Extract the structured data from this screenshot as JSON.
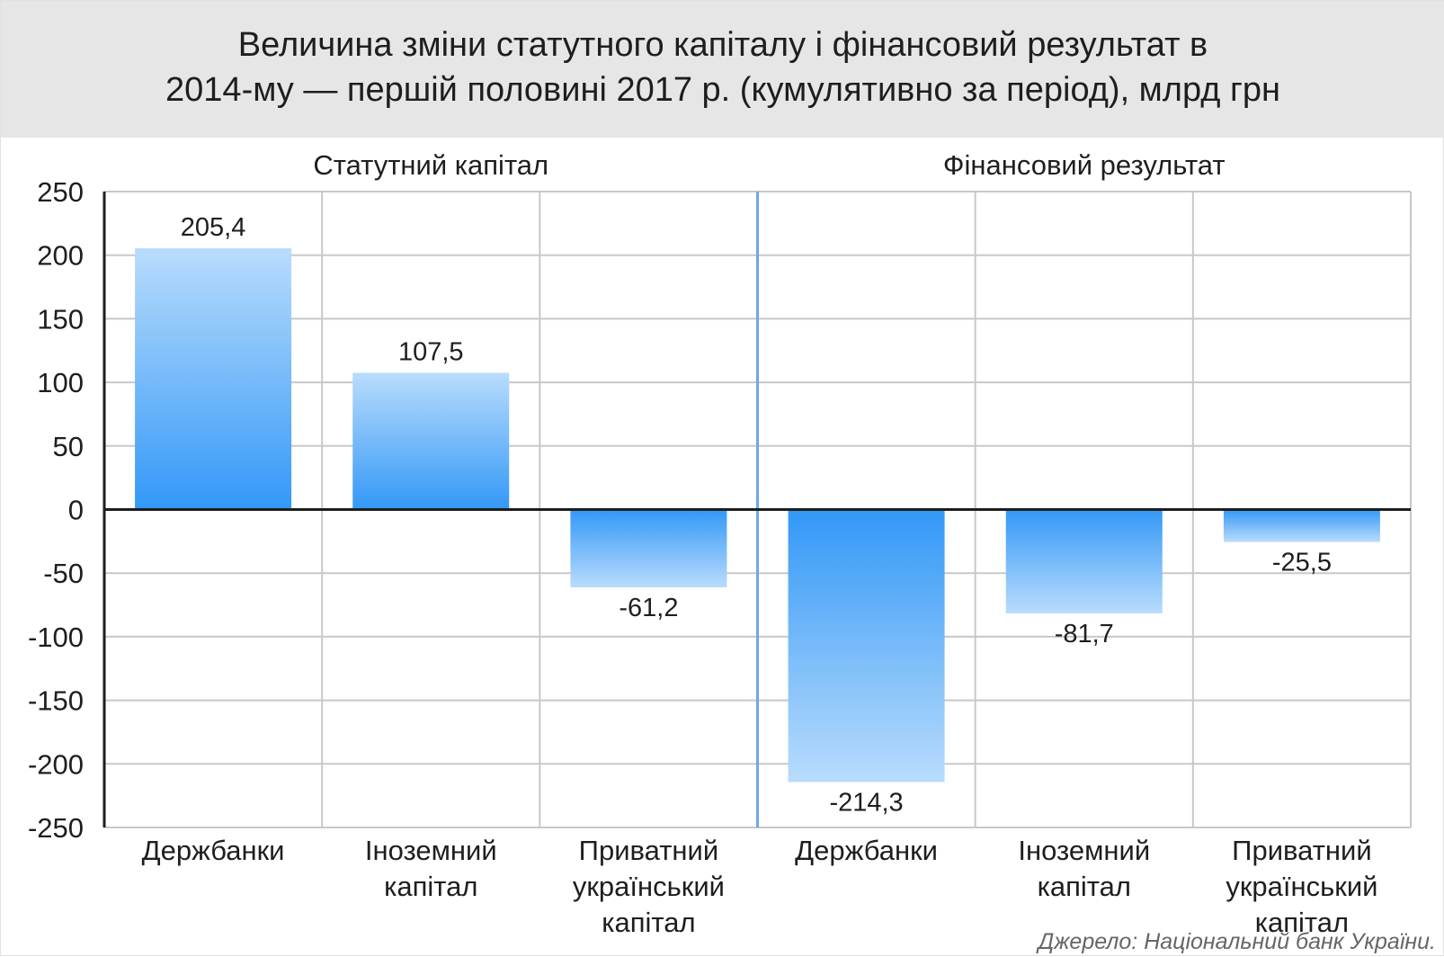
{
  "title": "Величина зміни статутного капіталу і фінансовий результат в\n2014-му — першій половині 2017 р. (кумулятивно за період), млрд грн",
  "source": "Джерело: Національний банк України.",
  "colors": {
    "bar_dark": "#3398f7",
    "bar_light": "#b9dcfc",
    "divider": "#6fa8e6",
    "grid": "#c8c8c8",
    "title_bg": "#e6e6e6"
  },
  "chart_data": {
    "type": "bar",
    "panels": [
      {
        "label": "Статутний капітал",
        "categories": [
          "Держбанки",
          "Іноземний\nкапітал",
          "Приватний\nукраїнський\nкапітал"
        ],
        "values": [
          205.4,
          107.5,
          -61.2
        ],
        "value_labels": [
          "205,4",
          "107,5",
          "-61,2"
        ]
      },
      {
        "label": "Фінансовий результат",
        "categories": [
          "Держбанки",
          "Іноземний\nкапітал",
          "Приватний\nукраїнський\nкапітал"
        ],
        "values": [
          -214.3,
          -81.7,
          -25.5
        ],
        "value_labels": [
          "-214,3",
          "-81,7",
          "-25,5"
        ]
      }
    ],
    "ylim": [
      -250,
      250
    ],
    "yticks": [
      250,
      200,
      150,
      100,
      50,
      0,
      -50,
      -100,
      -150,
      -200,
      -250
    ],
    "grid": true,
    "xlabel": "",
    "ylabel": ""
  }
}
